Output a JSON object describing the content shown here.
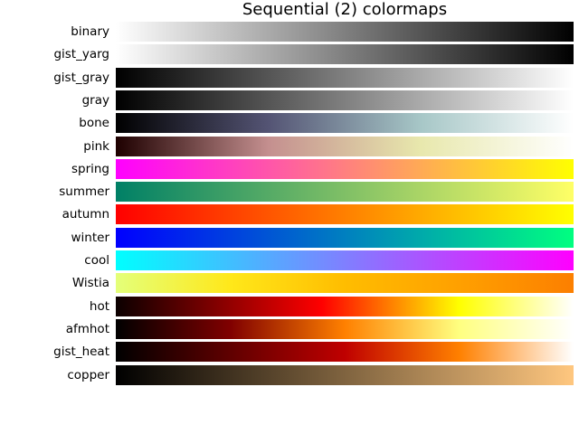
{
  "chart_data": {
    "type": "heatmap",
    "title": "Sequential (2) colormaps",
    "xlabel": "",
    "ylabel": "",
    "grid": false,
    "legend": null,
    "x_range": [
      0,
      1
    ],
    "colormaps": [
      {
        "name": "binary",
        "stops": [
          "#ffffff",
          "#000000"
        ]
      },
      {
        "name": "gist_yarg",
        "stops": [
          "#ffffff",
          "#000000"
        ]
      },
      {
        "name": "gist_gray",
        "stops": [
          "#000000",
          "#ffffff"
        ]
      },
      {
        "name": "gray",
        "stops": [
          "#000000",
          "#ffffff"
        ]
      },
      {
        "name": "bone",
        "stops": [
          "#000000",
          "#545474",
          "#a7c7c7",
          "#ffffff"
        ]
      },
      {
        "name": "pink",
        "stops": [
          "#1e0000",
          "#c48f8f",
          "#e8e8ad",
          "#ffffff"
        ]
      },
      {
        "name": "spring",
        "stops": [
          "#ff00ff",
          "#ffff00"
        ]
      },
      {
        "name": "summer",
        "stops": [
          "#008066",
          "#ffff66"
        ]
      },
      {
        "name": "autumn",
        "stops": [
          "#ff0000",
          "#ffff00"
        ]
      },
      {
        "name": "winter",
        "stops": [
          "#0000ff",
          "#00ff80"
        ]
      },
      {
        "name": "cool",
        "stops": [
          "#00ffff",
          "#ff00ff"
        ]
      },
      {
        "name": "Wistia",
        "stops": [
          "#e4ff7a",
          "#ffe81a",
          "#ffbd00",
          "#ffa000",
          "#fc7f00"
        ]
      },
      {
        "name": "hot",
        "stops": [
          "#0b0000",
          "#ff0000 45%",
          "#ffff00 75%",
          "#ffffff"
        ]
      },
      {
        "name": "afmhot",
        "stops": [
          "#000000",
          "#800000 25%",
          "#ff8000 50%",
          "#ffff80 75%",
          "#ffffff"
        ]
      },
      {
        "name": "gist_heat",
        "stops": [
          "#000000",
          "#bf0000 50%",
          "#ff8000 75%",
          "#ffffff"
        ]
      },
      {
        "name": "copper",
        "stops": [
          "#000000",
          "#ffc77f"
        ]
      }
    ]
  }
}
